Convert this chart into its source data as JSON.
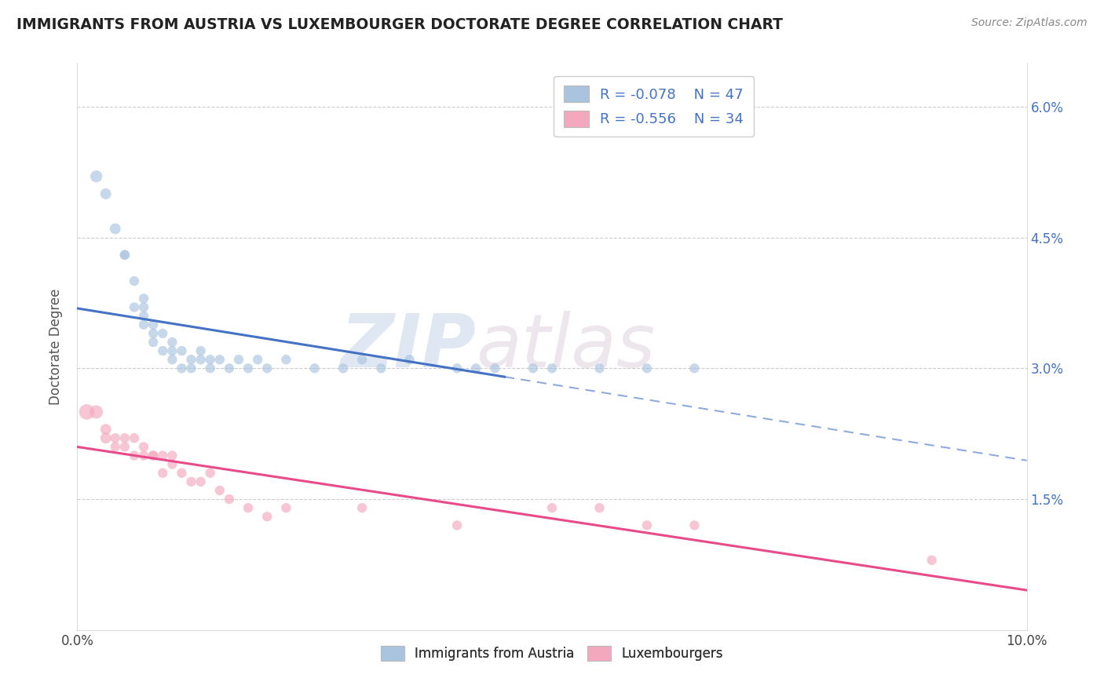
{
  "title": "IMMIGRANTS FROM AUSTRIA VS LUXEMBOURGER DOCTORATE DEGREE CORRELATION CHART",
  "source": "Source: ZipAtlas.com",
  "ylabel": "Doctorate Degree",
  "xlim": [
    0.0,
    0.1
  ],
  "ylim": [
    0.0,
    0.065
  ],
  "x_ticks": [
    0.0,
    0.02,
    0.04,
    0.06,
    0.08,
    0.1
  ],
  "x_tick_labels": [
    "0.0%",
    "",
    "",
    "",
    "",
    "10.0%"
  ],
  "y_ticks": [
    0.0,
    0.015,
    0.03,
    0.045,
    0.06
  ],
  "y_tick_labels_right": [
    "",
    "1.5%",
    "3.0%",
    "4.5%",
    "6.0%"
  ],
  "legend_r1": "R = -0.078",
  "legend_n1": "N = 47",
  "legend_r2": "R = -0.556",
  "legend_n2": "N = 34",
  "color_blue": "#aac4e0",
  "color_pink": "#f4a8be",
  "line_color_blue": "#4472c4",
  "line_color_pink": "#e84b8a",
  "legend_text_color": "#4472c4",
  "watermark_zip": "ZIP",
  "watermark_atlas": "atlas",
  "background_color": "#ffffff",
  "grid_color": "#cccccc",
  "austria_x": [
    0.002,
    0.003,
    0.004,
    0.005,
    0.005,
    0.006,
    0.006,
    0.007,
    0.007,
    0.007,
    0.007,
    0.008,
    0.008,
    0.008,
    0.009,
    0.009,
    0.01,
    0.01,
    0.01,
    0.011,
    0.011,
    0.012,
    0.012,
    0.013,
    0.013,
    0.014,
    0.014,
    0.015,
    0.016,
    0.017,
    0.018,
    0.019,
    0.02,
    0.022,
    0.025,
    0.028,
    0.03,
    0.032,
    0.035,
    0.04,
    0.042,
    0.044,
    0.048,
    0.05,
    0.055,
    0.06,
    0.065
  ],
  "austria_y": [
    0.052,
    0.05,
    0.046,
    0.043,
    0.043,
    0.04,
    0.037,
    0.037,
    0.038,
    0.036,
    0.035,
    0.035,
    0.033,
    0.034,
    0.032,
    0.034,
    0.033,
    0.032,
    0.031,
    0.032,
    0.03,
    0.03,
    0.031,
    0.031,
    0.032,
    0.03,
    0.031,
    0.031,
    0.03,
    0.031,
    0.03,
    0.031,
    0.03,
    0.031,
    0.03,
    0.03,
    0.031,
    0.03,
    0.031,
    0.03,
    0.03,
    0.03,
    0.03,
    0.03,
    0.03,
    0.03,
    0.03
  ],
  "austria_sizes": [
    120,
    100,
    100,
    80,
    80,
    80,
    80,
    80,
    80,
    80,
    80,
    80,
    80,
    80,
    80,
    80,
    80,
    80,
    80,
    80,
    80,
    80,
    80,
    80,
    80,
    80,
    80,
    80,
    80,
    80,
    80,
    80,
    80,
    80,
    80,
    80,
    80,
    80,
    80,
    80,
    80,
    80,
    80,
    80,
    80,
    80,
    80
  ],
  "lux_x": [
    0.001,
    0.002,
    0.003,
    0.003,
    0.004,
    0.004,
    0.005,
    0.005,
    0.006,
    0.006,
    0.007,
    0.007,
    0.008,
    0.008,
    0.009,
    0.009,
    0.01,
    0.01,
    0.011,
    0.012,
    0.013,
    0.014,
    0.015,
    0.016,
    0.018,
    0.02,
    0.022,
    0.03,
    0.04,
    0.05,
    0.055,
    0.06,
    0.065,
    0.09
  ],
  "lux_y": [
    0.025,
    0.025,
    0.023,
    0.022,
    0.022,
    0.021,
    0.022,
    0.021,
    0.022,
    0.02,
    0.021,
    0.02,
    0.02,
    0.02,
    0.02,
    0.018,
    0.02,
    0.019,
    0.018,
    0.017,
    0.017,
    0.018,
    0.016,
    0.015,
    0.014,
    0.013,
    0.014,
    0.014,
    0.012,
    0.014,
    0.014,
    0.012,
    0.012,
    0.008
  ],
  "lux_sizes": [
    200,
    150,
    100,
    100,
    80,
    80,
    80,
    80,
    80,
    80,
    80,
    80,
    80,
    80,
    80,
    80,
    80,
    80,
    80,
    80,
    80,
    80,
    80,
    80,
    80,
    80,
    80,
    80,
    80,
    80,
    80,
    80,
    80,
    80
  ],
  "blue_line_solid_xend": 0.045,
  "blue_line_start_y": 0.03,
  "blue_line_end_y": 0.025,
  "pink_line_start_y": 0.02,
  "pink_line_end_y": 0.0
}
